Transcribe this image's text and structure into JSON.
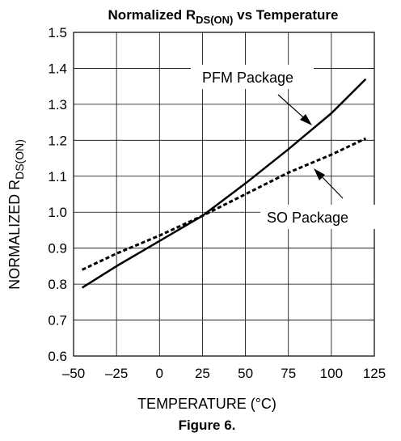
{
  "chart_data": {
    "type": "line",
    "title": {
      "main": "Normalized R",
      "sub": "DS(ON)",
      "tail": " vs Temperature"
    },
    "xlabel": "TEMPERATURE (°C)",
    "ylabel": {
      "main": "NORMALIZED R",
      "sub": "DS(ON)"
    },
    "caption": "Figure 6.",
    "xlim": [
      -50,
      125
    ],
    "ylim": [
      0.6,
      1.5
    ],
    "x_ticks": [
      -50,
      -25,
      0,
      25,
      50,
      75,
      100,
      125
    ],
    "x_tick_labels": [
      "–50",
      "–25",
      "0",
      "25",
      "50",
      "75",
      "100",
      "125"
    ],
    "y_ticks": [
      0.6,
      0.7,
      0.8,
      0.9,
      1.0,
      1.1,
      1.2,
      1.3,
      1.4,
      1.5
    ],
    "y_tick_labels": [
      "0.6",
      "0.7",
      "0.8",
      "0.9",
      "1.0",
      "1.1",
      "1.2",
      "1.3",
      "1.4",
      "1.5"
    ],
    "grid": true,
    "series": [
      {
        "name": "PFM Package",
        "style": "solid",
        "color": "#000000",
        "x": [
          -45,
          -25,
          0,
          25,
          50,
          75,
          100,
          120
        ],
        "y": [
          0.79,
          0.85,
          0.92,
          0.99,
          1.08,
          1.175,
          1.275,
          1.37
        ]
      },
      {
        "name": "SO Package",
        "style": "dashed",
        "color": "#000000",
        "x": [
          -45,
          -25,
          0,
          25,
          50,
          75,
          100,
          120
        ],
        "y": [
          0.84,
          0.885,
          0.935,
          0.99,
          1.05,
          1.11,
          1.16,
          1.205
        ]
      }
    ]
  }
}
